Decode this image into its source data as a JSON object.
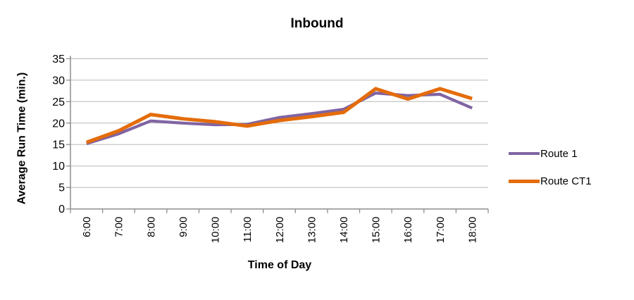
{
  "chart_data": {
    "type": "line",
    "title": "Inbound",
    "xlabel": "Time of Day",
    "ylabel": "Average Run Time (min.)",
    "categories": [
      "6:00",
      "7:00",
      "8:00",
      "9:00",
      "10:00",
      "11:00",
      "12:00",
      "13:00",
      "14:00",
      "15:00",
      "16:00",
      "17:00",
      "18:00"
    ],
    "series": [
      {
        "name": "Route 1",
        "color": "#8064A2",
        "stroke_width": 4.2,
        "values": [
          15.2,
          17.5,
          20.5,
          20.0,
          19.6,
          19.7,
          21.3,
          22.2,
          23.2,
          27.0,
          26.4,
          26.7,
          23.5
        ]
      },
      {
        "name": "Route CT1",
        "color": "#E46C0A",
        "stroke_width": 5,
        "values": [
          15.5,
          18.2,
          22.0,
          21.0,
          20.3,
          19.3,
          20.6,
          21.5,
          22.5,
          28.0,
          25.6,
          28.0,
          25.7
        ]
      }
    ],
    "ylim": [
      0,
      35
    ],
    "yticks": [
      0,
      5,
      10,
      15,
      20,
      25,
      30,
      35
    ],
    "grid": "horizontal",
    "legend_position": "right"
  },
  "colors": {
    "background": "#FFFFFF",
    "gridline": "#C6C6C6",
    "axis": "#8E8E8E",
    "tick_text": "#000000"
  }
}
